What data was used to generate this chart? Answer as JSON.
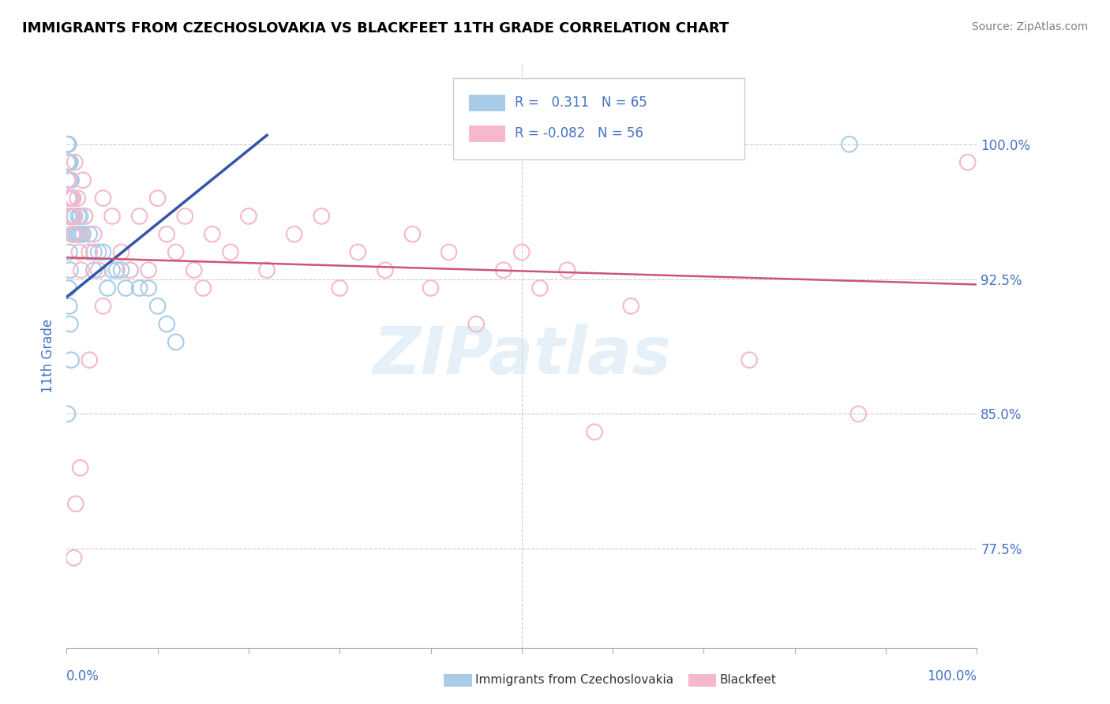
{
  "title": "IMMIGRANTS FROM CZECHOSLOVAKIA VS BLACKFEET 11TH GRADE CORRELATION CHART",
  "source_text": "Source: ZipAtlas.com",
  "ylabel": "11th Grade",
  "ytick_labels": [
    "77.5%",
    "85.0%",
    "92.5%",
    "100.0%"
  ],
  "ytick_values": [
    0.775,
    0.85,
    0.925,
    1.0
  ],
  "xlim": [
    0.0,
    1.0
  ],
  "ylim": [
    0.72,
    1.045
  ],
  "legend_blue_r": "0.311",
  "legend_blue_n": "65",
  "legend_pink_r": "-0.082",
  "legend_pink_n": "56",
  "blue_color": "#a8cce8",
  "pink_color": "#f5b8cc",
  "blue_line_color": "#3355aa",
  "pink_line_color": "#cc5577",
  "blue_line_x0": 0.0,
  "blue_line_y0": 0.915,
  "blue_line_x1": 0.22,
  "blue_line_y1": 1.005,
  "pink_line_x0": 0.0,
  "pink_line_y0": 0.937,
  "pink_line_x1": 1.0,
  "pink_line_y1": 0.922,
  "scatter_blue_x": [
    0.001,
    0.001,
    0.001,
    0.001,
    0.001,
    0.002,
    0.002,
    0.002,
    0.002,
    0.002,
    0.002,
    0.003,
    0.003,
    0.003,
    0.003,
    0.004,
    0.004,
    0.004,
    0.004,
    0.005,
    0.005,
    0.005,
    0.006,
    0.006,
    0.006,
    0.007,
    0.007,
    0.008,
    0.008,
    0.009,
    0.01,
    0.011,
    0.012,
    0.013,
    0.014,
    0.015,
    0.016,
    0.018,
    0.02,
    0.025,
    0.03,
    0.035,
    0.04,
    0.05,
    0.06,
    0.07,
    0.08,
    0.09,
    0.1,
    0.11,
    0.12,
    0.03,
    0.045,
    0.055,
    0.065,
    0.001,
    0.002,
    0.003,
    0.004,
    0.002,
    0.003,
    0.004,
    0.005,
    0.001,
    0.86
  ],
  "scatter_blue_y": [
    1.0,
    1.0,
    1.0,
    1.0,
    0.99,
    1.0,
    1.0,
    0.99,
    0.99,
    0.98,
    0.97,
    0.99,
    0.98,
    0.97,
    0.96,
    0.99,
    0.98,
    0.97,
    0.96,
    0.98,
    0.97,
    0.96,
    0.97,
    0.96,
    0.95,
    0.97,
    0.96,
    0.96,
    0.95,
    0.96,
    0.95,
    0.95,
    0.95,
    0.96,
    0.95,
    0.96,
    0.95,
    0.95,
    0.96,
    0.95,
    0.94,
    0.94,
    0.94,
    0.93,
    0.93,
    0.93,
    0.92,
    0.92,
    0.91,
    0.9,
    0.89,
    0.93,
    0.92,
    0.93,
    0.92,
    0.98,
    0.96,
    0.94,
    0.93,
    0.92,
    0.91,
    0.9,
    0.88,
    0.85,
    1.0
  ],
  "scatter_pink_x": [
    0.002,
    0.003,
    0.004,
    0.005,
    0.006,
    0.007,
    0.008,
    0.009,
    0.01,
    0.012,
    0.014,
    0.016,
    0.018,
    0.02,
    0.025,
    0.03,
    0.035,
    0.04,
    0.05,
    0.06,
    0.07,
    0.08,
    0.09,
    0.1,
    0.11,
    0.12,
    0.13,
    0.14,
    0.15,
    0.16,
    0.18,
    0.2,
    0.22,
    0.25,
    0.28,
    0.3,
    0.32,
    0.35,
    0.38,
    0.4,
    0.42,
    0.45,
    0.48,
    0.5,
    0.52,
    0.55,
    0.58,
    0.04,
    0.025,
    0.015,
    0.01,
    0.008,
    0.62,
    0.75,
    0.87,
    0.99
  ],
  "scatter_pink_y": [
    0.98,
    0.97,
    0.96,
    0.97,
    0.95,
    0.97,
    0.96,
    0.99,
    0.95,
    0.97,
    0.94,
    0.93,
    0.98,
    0.96,
    0.94,
    0.95,
    0.93,
    0.97,
    0.96,
    0.94,
    0.93,
    0.96,
    0.93,
    0.97,
    0.95,
    0.94,
    0.96,
    0.93,
    0.92,
    0.95,
    0.94,
    0.96,
    0.93,
    0.95,
    0.96,
    0.92,
    0.94,
    0.93,
    0.95,
    0.92,
    0.94,
    0.9,
    0.93,
    0.94,
    0.92,
    0.93,
    0.84,
    0.91,
    0.88,
    0.82,
    0.8,
    0.77,
    0.91,
    0.88,
    0.85,
    0.99
  ]
}
